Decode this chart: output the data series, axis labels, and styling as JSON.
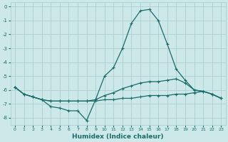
{
  "xlabel": "Humidex (Indice chaleur)",
  "background_color": "#cce8e8",
  "grid_color": "#aed0d0",
  "line_color": "#1a6b6b",
  "x_values": [
    0,
    1,
    2,
    3,
    4,
    5,
    6,
    7,
    8,
    9,
    10,
    11,
    12,
    13,
    14,
    15,
    16,
    17,
    18,
    19,
    20,
    21,
    22,
    23
  ],
  "line1": [
    -5.8,
    -6.3,
    -6.5,
    -6.7,
    -7.2,
    -7.3,
    -7.5,
    -7.5,
    -8.2,
    -6.7,
    -5.0,
    -4.4,
    -3.0,
    -1.2,
    -0.3,
    -0.2,
    -1.0,
    -2.7,
    -4.5,
    -5.3,
    -6.0,
    -6.1,
    -6.3,
    -6.6
  ],
  "line2": [
    -5.8,
    -6.3,
    -6.5,
    -6.7,
    -6.8,
    -6.8,
    -6.8,
    -6.8,
    -6.8,
    -6.8,
    -6.7,
    -6.7,
    -6.6,
    -6.6,
    -6.5,
    -6.4,
    -6.4,
    -6.4,
    -6.3,
    -6.3,
    -6.2,
    -6.1,
    -6.3,
    -6.6
  ],
  "line3": [
    -5.8,
    -6.3,
    -6.5,
    -6.7,
    -6.8,
    -6.8,
    -6.8,
    -6.8,
    -6.8,
    -6.7,
    -6.4,
    -6.2,
    -5.9,
    -5.7,
    -5.5,
    -5.4,
    -5.4,
    -5.3,
    -5.2,
    -5.5,
    -6.0,
    -6.1,
    -6.3,
    -6.6
  ],
  "ylim": [
    -8.5,
    0.3
  ],
  "xlim": [
    -0.5,
    23.5
  ],
  "yticks": [
    0,
    -1,
    -2,
    -3,
    -4,
    -5,
    -6,
    -7,
    -8
  ],
  "xticks": [
    0,
    1,
    2,
    3,
    4,
    5,
    6,
    7,
    8,
    9,
    10,
    11,
    12,
    13,
    14,
    15,
    16,
    17,
    18,
    19,
    20,
    21,
    22,
    23
  ]
}
